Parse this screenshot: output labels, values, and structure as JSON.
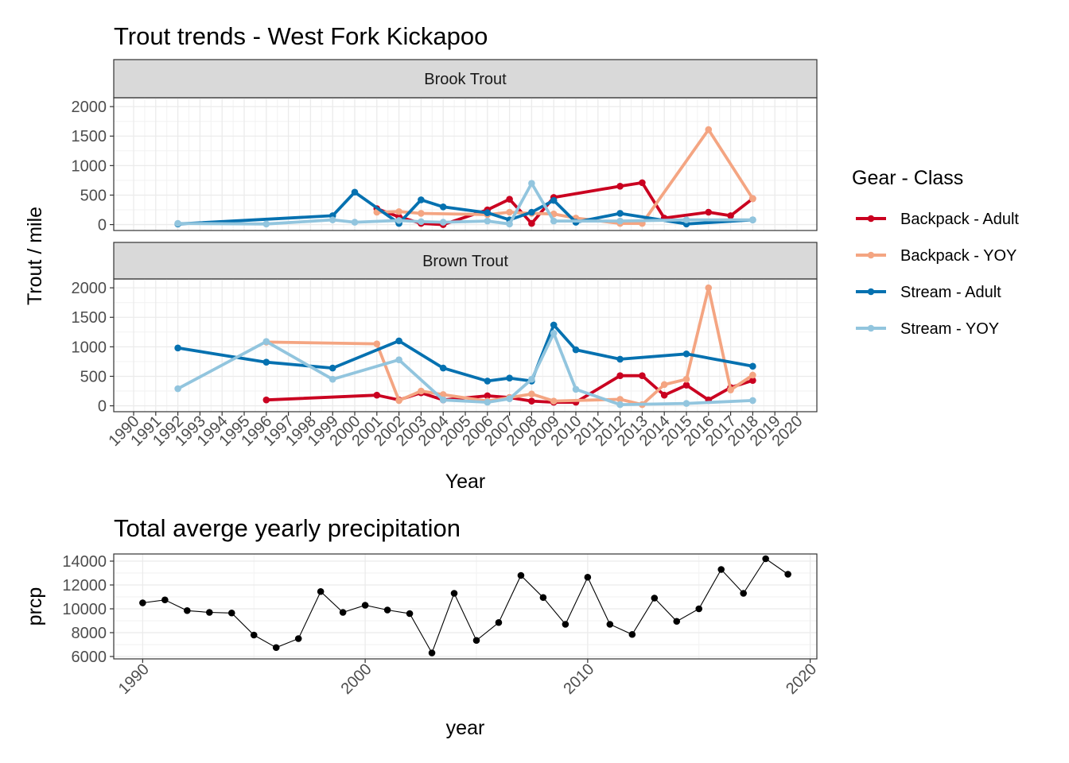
{
  "chart_data": [
    {
      "type": "line",
      "title": "Trout trends - West Fork Kickapoo",
      "xlabel": "Year",
      "ylabel": "Trout / mile",
      "x_ticks": [
        1990,
        1991,
        1992,
        1993,
        1994,
        1995,
        1996,
        1997,
        1998,
        1999,
        2000,
        2001,
        2002,
        2003,
        2004,
        2005,
        2006,
        2007,
        2008,
        2009,
        2010,
        2011,
        2012,
        2013,
        2014,
        2015,
        2016,
        2017,
        2018,
        2019,
        2020
      ],
      "xlim": [
        1989.1,
        2020.9
      ],
      "ylim": [
        -100,
        2150
      ],
      "y_ticks": [
        0,
        500,
        1000,
        1500,
        2000
      ],
      "grid": true,
      "legend": {
        "title": "Gear - Class",
        "placement": "right",
        "entries": [
          {
            "label": "Backpack - Adult",
            "color": "#ca0020"
          },
          {
            "label": "Backpack - YOY",
            "color": "#f4a582"
          },
          {
            "label": "Stream - Adult",
            "color": "#0571b0"
          },
          {
            "label": "Stream - YOY",
            "color": "#92c5de"
          }
        ]
      },
      "panels": [
        {
          "label": "Brook Trout",
          "series": [
            {
              "name": "Backpack - Adult",
              "color": "#ca0020",
              "points": [
                [
                  2001,
                  270
                ],
                [
                  2002,
                  130
                ],
                [
                  2003,
                  20
                ],
                [
                  2004,
                  0
                ],
                [
                  2006,
                  250
                ],
                [
                  2007,
                  430
                ],
                [
                  2008,
                  20
                ],
                [
                  2009,
                  460
                ],
                [
                  2012,
                  650
                ],
                [
                  2013,
                  710
                ],
                [
                  2014,
                  110
                ],
                [
                  2016,
                  210
                ],
                [
                  2017,
                  150
                ],
                [
                  2018,
                  440
                ]
              ]
            },
            {
              "name": "Backpack - YOY",
              "color": "#f4a582",
              "points": [
                [
                  2001,
                  210
                ],
                [
                  2002,
                  220
                ],
                [
                  2003,
                  190
                ],
                [
                  2006,
                  170
                ],
                [
                  2007,
                  210
                ],
                [
                  2008,
                  190
                ],
                [
                  2009,
                  180
                ],
                [
                  2010,
                  110
                ],
                [
                  2012,
                  20
                ],
                [
                  2013,
                  20
                ],
                [
                  2016,
                  1610
                ],
                [
                  2018,
                  440
                ]
              ]
            },
            {
              "name": "Stream - Adult",
              "color": "#0571b0",
              "points": [
                [
                  1992,
                  10
                ],
                [
                  1999,
                  150
                ],
                [
                  2000,
                  550
                ],
                [
                  2002,
                  20
                ],
                [
                  2003,
                  420
                ],
                [
                  2004,
                  300
                ],
                [
                  2006,
                  200
                ],
                [
                  2007,
                  80
                ],
                [
                  2008,
                  210
                ],
                [
                  2009,
                  410
                ],
                [
                  2010,
                  40
                ],
                [
                  2012,
                  190
                ],
                [
                  2015,
                  10
                ],
                [
                  2018,
                  80
                ]
              ]
            },
            {
              "name": "Stream - YOY",
              "color": "#92c5de",
              "points": [
                [
                  1992,
                  20
                ],
                [
                  1996,
                  10
                ],
                [
                  1999,
                  80
                ],
                [
                  2000,
                  40
                ],
                [
                  2002,
                  70
                ],
                [
                  2003,
                  50
                ],
                [
                  2004,
                  40
                ],
                [
                  2006,
                  60
                ],
                [
                  2007,
                  10
                ],
                [
                  2008,
                  700
                ],
                [
                  2009,
                  60
                ],
                [
                  2012,
                  60
                ],
                [
                  2015,
                  80
                ],
                [
                  2018,
                  80
                ]
              ]
            }
          ]
        },
        {
          "label": "Brown Trout",
          "series": [
            {
              "name": "Backpack - Adult",
              "color": "#ca0020",
              "points": [
                [
                  1996,
                  100
                ],
                [
                  2001,
                  180
                ],
                [
                  2002,
                  100
                ],
                [
                  2003,
                  220
                ],
                [
                  2004,
                  100
                ],
                [
                  2006,
                  170
                ],
                [
                  2007,
                  140
                ],
                [
                  2008,
                  80
                ],
                [
                  2009,
                  60
                ],
                [
                  2010,
                  60
                ],
                [
                  2012,
                  510
                ],
                [
                  2013,
                  510
                ],
                [
                  2014,
                  180
                ],
                [
                  2015,
                  350
                ],
                [
                  2016,
                  100
                ],
                [
                  2017,
                  310
                ],
                [
                  2018,
                  430
                ]
              ]
            },
            {
              "name": "Backpack - YOY",
              "color": "#f4a582",
              "points": [
                [
                  1996,
                  1080
                ],
                [
                  2001,
                  1050
                ],
                [
                  2002,
                  90
                ],
                [
                  2003,
                  250
                ],
                [
                  2004,
                  190
                ],
                [
                  2006,
                  80
                ],
                [
                  2007,
                  140
                ],
                [
                  2008,
                  200
                ],
                [
                  2009,
                  80
                ],
                [
                  2012,
                  110
                ],
                [
                  2013,
                  20
                ],
                [
                  2014,
                  360
                ],
                [
                  2015,
                  450
                ],
                [
                  2016,
                  2000
                ],
                [
                  2017,
                  270
                ],
                [
                  2018,
                  520
                ]
              ]
            },
            {
              "name": "Stream - Adult",
              "color": "#0571b0",
              "points": [
                [
                  1992,
                  980
                ],
                [
                  1996,
                  740
                ],
                [
                  1999,
                  640
                ],
                [
                  2002,
                  1100
                ],
                [
                  2004,
                  640
                ],
                [
                  2006,
                  420
                ],
                [
                  2007,
                  470
                ],
                [
                  2008,
                  420
                ],
                [
                  2009,
                  1370
                ],
                [
                  2010,
                  950
                ],
                [
                  2012,
                  790
                ],
                [
                  2015,
                  880
                ],
                [
                  2018,
                  670
                ]
              ]
            },
            {
              "name": "Stream - YOY",
              "color": "#92c5de",
              "points": [
                [
                  1992,
                  290
                ],
                [
                  1996,
                  1090
                ],
                [
                  1999,
                  450
                ],
                [
                  2002,
                  780
                ],
                [
                  2004,
                  100
                ],
                [
                  2006,
                  60
                ],
                [
                  2007,
                  120
                ],
                [
                  2008,
                  450
                ],
                [
                  2009,
                  1230
                ],
                [
                  2010,
                  280
                ],
                [
                  2012,
                  20
                ],
                [
                  2015,
                  40
                ],
                [
                  2018,
                  90
                ]
              ]
            }
          ]
        }
      ]
    },
    {
      "type": "line",
      "title": "Total averge yearly precipitation",
      "xlabel": "year",
      "ylabel": "prcp",
      "xlim": [
        1988.7,
        2020.3
      ],
      "x_ticks": [
        1990,
        2000,
        2010,
        2020
      ],
      "ylim": [
        5800,
        14600
      ],
      "y_ticks": [
        6000,
        8000,
        10000,
        12000,
        14000
      ],
      "grid": true,
      "color": "#000000",
      "x": [
        1990,
        1991,
        1992,
        1993,
        1994,
        1995,
        1996,
        1997,
        1998,
        1999,
        2000,
        2001,
        2002,
        2003,
        2004,
        2005,
        2006,
        2007,
        2008,
        2009,
        2010,
        2011,
        2012,
        2013,
        2014,
        2015,
        2016,
        2017,
        2018,
        2019
      ],
      "y": [
        10500,
        10750,
        9850,
        9700,
        9650,
        7800,
        6750,
        7500,
        11450,
        9700,
        10300,
        9900,
        9600,
        6300,
        11300,
        7350,
        8850,
        12800,
        10950,
        8700,
        12650,
        8700,
        7850,
        10900,
        8950,
        10000,
        13300,
        11300,
        14200,
        12900
      ]
    }
  ]
}
